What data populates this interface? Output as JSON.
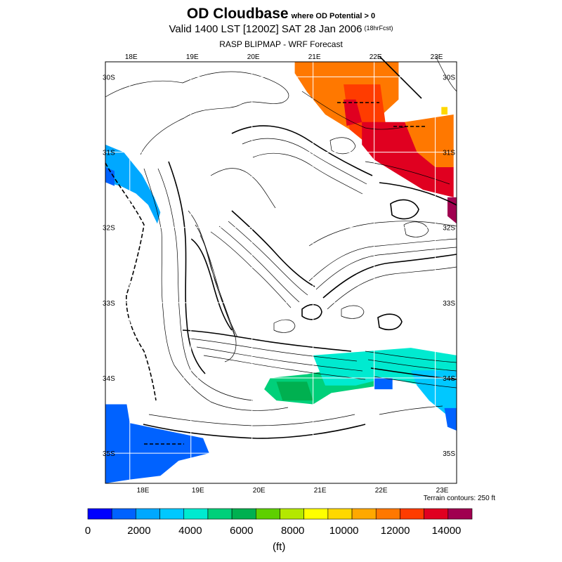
{
  "header": {
    "title": "OD Cloudbase",
    "title_note": "where OD Potential > 0",
    "subtitle": "Valid 1400 LST [1200Z] SAT 28 Jan 2006",
    "subtitle_note": "(18hrFcst)",
    "source": "RASP BLIPMAP - WRF Forecast"
  },
  "terrain_note": "Terrain contours: 250 ft",
  "colorbar": {
    "unit": "(ft)",
    "colors": [
      "#0000ff",
      "#0062ff",
      "#00a8ff",
      "#00c8ff",
      "#00ead0",
      "#00d07a",
      "#00b050",
      "#5ed000",
      "#b4e800",
      "#ffff00",
      "#ffd800",
      "#ffa800",
      "#ff7800",
      "#ff3c00",
      "#e00020",
      "#a00050"
    ],
    "ticks": [
      {
        "label": "0",
        "value": 0
      },
      {
        "label": "2000",
        "value": 2000
      },
      {
        "label": "4000",
        "value": 4000
      },
      {
        "label": "6000",
        "value": 6000
      },
      {
        "label": "8000",
        "value": 8000
      },
      {
        "label": "10000",
        "value": 10000
      },
      {
        "label": "12000",
        "value": 12000
      },
      {
        "label": "14000",
        "value": 14000
      }
    ],
    "min": 0,
    "max": 15000
  },
  "chart_data": {
    "type": "heatmap",
    "title": "OD Cloudbase",
    "xlim": [
      17.6,
      23.35
    ],
    "ylim": [
      -35.4,
      -29.8
    ],
    "top_lon_labels": [
      {
        "label": "18E",
        "lon": 18.0
      },
      {
        "label": "19E",
        "lon": 19.0
      },
      {
        "label": "20E",
        "lon": 20.0
      },
      {
        "label": "21E",
        "lon": 21.0
      },
      {
        "label": "22E",
        "lon": 22.0
      },
      {
        "label": "23E",
        "lon": 23.0
      }
    ],
    "bottom_lon_labels": [
      {
        "label": "18E",
        "lon": 18.1
      },
      {
        "label": "19E",
        "lon": 19.0
      },
      {
        "label": "20E",
        "lon": 20.0
      },
      {
        "label": "21E",
        "lon": 21.0
      },
      {
        "label": "22E",
        "lon": 22.0
      },
      {
        "label": "23E",
        "lon": 23.0
      }
    ],
    "left_lat_labels": [
      {
        "label": "30S",
        "lat": -30.0
      },
      {
        "label": "31S",
        "lat": -31.0
      },
      {
        "label": "32S",
        "lat": -32.0
      },
      {
        "label": "33S",
        "lat": -33.0
      },
      {
        "label": "34S",
        "lat": -34.0
      },
      {
        "label": "35S",
        "lat": -35.0
      }
    ],
    "right_lat_labels": [
      {
        "label": "30S",
        "lat": -30.0
      },
      {
        "label": "31S",
        "lat": -31.0
      },
      {
        "label": "32S",
        "lat": -32.0
      },
      {
        "label": "33S",
        "lat": -33.0
      },
      {
        "label": "34S",
        "lat": -34.0
      },
      {
        "label": "35S",
        "lat": -35.0
      }
    ],
    "cloudbase_regions": [
      {
        "name": "ne-high",
        "value": 11500,
        "polygon": [
          [
            20.7,
            -29.8
          ],
          [
            22.4,
            -29.8
          ],
          [
            22.4,
            -30.3
          ],
          [
            22.0,
            -30.6
          ],
          [
            21.6,
            -30.7
          ],
          [
            21.2,
            -30.5
          ],
          [
            20.9,
            -30.2
          ],
          [
            20.7,
            -29.95
          ]
        ]
      },
      {
        "name": "ne-mid",
        "value": 12500,
        "polygon": [
          [
            21.5,
            -30.1
          ],
          [
            22.1,
            -30.1
          ],
          [
            22.2,
            -30.7
          ],
          [
            21.9,
            -30.9
          ],
          [
            21.6,
            -30.7
          ]
        ]
      },
      {
        "name": "ne-inner",
        "value": 13500,
        "polygon": [
          [
            21.5,
            -30.3
          ],
          [
            21.7,
            -30.3
          ],
          [
            21.8,
            -30.6
          ],
          [
            21.55,
            -30.65
          ]
        ]
      },
      {
        "name": "e-red",
        "value": 13500,
        "polygon": [
          [
            21.8,
            -30.6
          ],
          [
            22.7,
            -30.6
          ],
          [
            23.1,
            -30.8
          ],
          [
            23.3,
            -31.2
          ],
          [
            23.3,
            -31.6
          ],
          [
            22.8,
            -31.5
          ],
          [
            22.4,
            -31.3
          ],
          [
            22.0,
            -31.1
          ],
          [
            21.8,
            -30.9
          ]
        ]
      },
      {
        "name": "e-orange",
        "value": 11500,
        "polygon": [
          [
            22.5,
            -30.6
          ],
          [
            23.3,
            -30.5
          ],
          [
            23.3,
            -31.2
          ],
          [
            23.0,
            -31.2
          ],
          [
            22.7,
            -31.0
          ]
        ]
      },
      {
        "name": "e-yellow",
        "value": 9500,
        "polygon": [
          [
            23.1,
            -30.4
          ],
          [
            23.2,
            -30.4
          ],
          [
            23.2,
            -30.5
          ],
          [
            23.1,
            -30.5
          ]
        ]
      },
      {
        "name": "e-purple",
        "value": 14500,
        "polygon": [
          [
            23.2,
            -31.6
          ],
          [
            23.35,
            -31.6
          ],
          [
            23.35,
            -31.95
          ],
          [
            23.2,
            -31.85
          ]
        ]
      },
      {
        "name": "w-cyan",
        "value": 2800,
        "polygon": [
          [
            17.6,
            -30.9
          ],
          [
            17.9,
            -31.0
          ],
          [
            18.2,
            -31.3
          ],
          [
            18.4,
            -31.6
          ],
          [
            18.5,
            -31.8
          ],
          [
            18.45,
            -31.95
          ],
          [
            18.3,
            -31.7
          ],
          [
            18.1,
            -31.55
          ],
          [
            17.85,
            -31.45
          ],
          [
            17.6,
            -31.4
          ]
        ]
      },
      {
        "name": "w-blue",
        "value": 1500,
        "polygon": [
          [
            17.6,
            -31.2
          ],
          [
            17.75,
            -31.25
          ],
          [
            17.75,
            -31.45
          ],
          [
            17.6,
            -31.4
          ]
        ]
      },
      {
        "name": "sw-blue",
        "value": 1500,
        "polygon": [
          [
            17.6,
            -34.35
          ],
          [
            17.95,
            -34.35
          ],
          [
            18.0,
            -34.6
          ],
          [
            18.6,
            -34.7
          ],
          [
            19.2,
            -34.8
          ],
          [
            19.3,
            -35.0
          ],
          [
            18.8,
            -35.1
          ],
          [
            18.5,
            -35.3
          ],
          [
            18.0,
            -35.35
          ],
          [
            17.6,
            -35.4
          ]
        ]
      },
      {
        "name": "s-green",
        "value": 5500,
        "polygon": [
          [
            20.3,
            -34.0
          ],
          [
            20.9,
            -33.95
          ],
          [
            21.6,
            -33.85
          ],
          [
            21.9,
            -33.7
          ],
          [
            22.1,
            -33.8
          ],
          [
            22.1,
            -34.1
          ],
          [
            21.3,
            -34.2
          ],
          [
            21.0,
            -34.35
          ],
          [
            20.4,
            -34.3
          ],
          [
            20.2,
            -34.15
          ]
        ]
      },
      {
        "name": "s-dkgreen",
        "value": 6500,
        "polygon": [
          [
            20.4,
            -34.05
          ],
          [
            20.9,
            -34.05
          ],
          [
            21.0,
            -34.3
          ],
          [
            20.5,
            -34.3
          ]
        ]
      },
      {
        "name": "se-teal",
        "value": 4500,
        "polygon": [
          [
            21.0,
            -33.7
          ],
          [
            22.6,
            -33.6
          ],
          [
            23.35,
            -33.7
          ],
          [
            23.35,
            -34.3
          ],
          [
            22.8,
            -34.1
          ],
          [
            22.2,
            -34.0
          ],
          [
            21.7,
            -34.1
          ],
          [
            21.2,
            -34.1
          ]
        ]
      },
      {
        "name": "se-cyan",
        "value": 3500,
        "polygon": [
          [
            22.6,
            -33.9
          ],
          [
            23.35,
            -33.9
          ],
          [
            23.35,
            -34.6
          ],
          [
            23.2,
            -34.5
          ],
          [
            22.9,
            -34.3
          ],
          [
            22.7,
            -34.1
          ]
        ]
      },
      {
        "name": "se-blue",
        "value": 1500,
        "polygon": [
          [
            23.15,
            -34.4
          ],
          [
            23.35,
            -34.4
          ],
          [
            23.35,
            -34.7
          ],
          [
            23.2,
            -34.65
          ]
        ]
      },
      {
        "name": "se-blue2",
        "value": 1500,
        "polygon": [
          [
            22.0,
            -34.0
          ],
          [
            22.3,
            -34.0
          ],
          [
            22.3,
            -34.15
          ],
          [
            22.0,
            -34.15
          ]
        ]
      }
    ]
  }
}
